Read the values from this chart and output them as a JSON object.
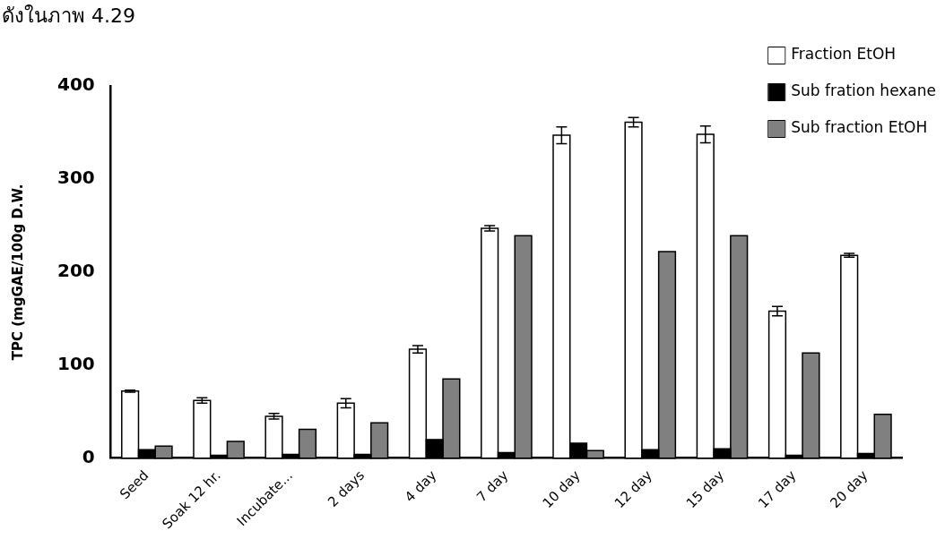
{
  "chart_data": {
    "type": "bar",
    "ylabel": "TPC (mgGAE/100g D.W.",
    "annotations": [
      "ดังในภาพ 4.29"
    ],
    "categories": [
      "Seed",
      "Soak 12 hr.",
      "Incubate...",
      "2 days",
      "4 day",
      "7 day",
      "10 day",
      "12 day",
      "15 day",
      "17 day",
      "20 day"
    ],
    "series": [
      {
        "name": "Fraction EtOH",
        "color": "#ffffff",
        "values": [
          72,
          62,
          45,
          59,
          117,
          247,
          347,
          361,
          348,
          158,
          218
        ],
        "errors": [
          1,
          3,
          3,
          5,
          4,
          3,
          9,
          5,
          9,
          5,
          2
        ]
      },
      {
        "name": "Sub fration hexane",
        "color": "#000000",
        "values": [
          9,
          3,
          4,
          4,
          20,
          6,
          16,
          9,
          10,
          3,
          5
        ]
      },
      {
        "name": "Sub fraction EtOH",
        "color": "#808080",
        "values": [
          13,
          18,
          31,
          38,
          85,
          239,
          8,
          222,
          239,
          113,
          47
        ]
      }
    ],
    "ylim": [
      0,
      400
    ],
    "yticks": [
      0,
      100,
      200,
      300,
      400
    ],
    "grid": false,
    "legend": "top right"
  }
}
